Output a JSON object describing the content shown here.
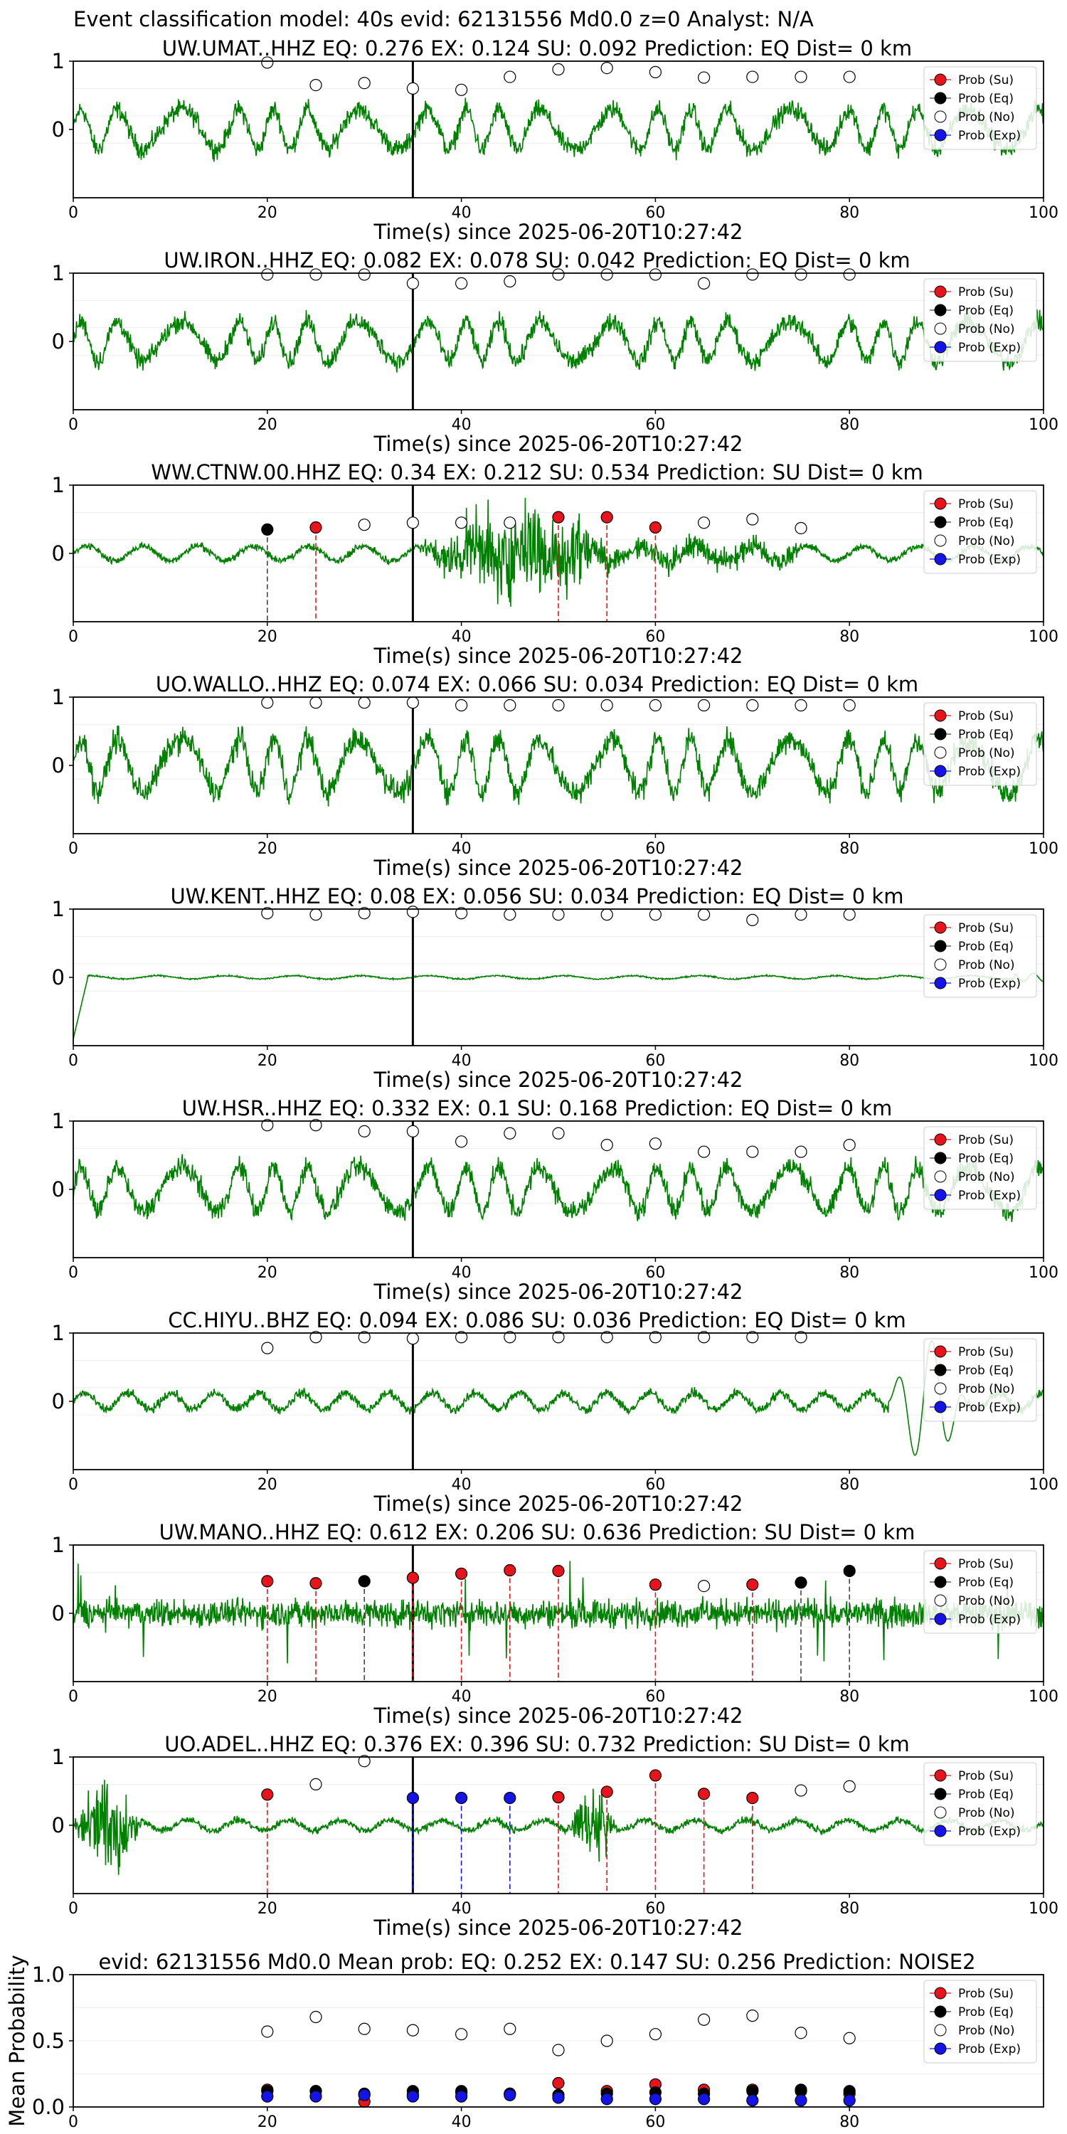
{
  "figure": {
    "title": "Event classification model: 40s evid: 62131556 Md0.0 z=0 Analyst: N/A",
    "colors": {
      "waveform": "#008000",
      "su": "#e8141c",
      "eq": "#000000",
      "no": "#ffffff",
      "exp": "#1414e6",
      "su_line": "#e8141c",
      "eq_line": "#444444",
      "exp_line": "#1414e6"
    }
  },
  "chart_data": [
    {
      "type": "line",
      "station": "UW.UMAT..HHZ",
      "title": "UW.UMAT..HHZ   EQ: 0.276  EX: 0.124  SU: 0.092   Prediction: EQ    Dist= 0 km",
      "xlabel": "Time(s) since 2025-06-20T10:27:42",
      "xlim": [
        0,
        100
      ],
      "ylim": [
        -1,
        1
      ],
      "xticks": [
        "0",
        "20",
        "40",
        "60",
        "80",
        "100"
      ],
      "yticks": [
        "1",
        "0"
      ],
      "pick_time": 35,
      "waveform": {
        "style": "noisy",
        "amplitude": 0.45
      },
      "legend": [
        "Prob (Su)",
        "Prob (Eq)",
        "Prob (No)",
        "Prob (Exp)"
      ],
      "points": [
        {
          "x": 20,
          "y": 0.98,
          "cls": "no"
        },
        {
          "x": 25,
          "y": 0.65,
          "cls": "no"
        },
        {
          "x": 30,
          "y": 0.68,
          "cls": "no"
        },
        {
          "x": 35,
          "y": 0.6,
          "cls": "no"
        },
        {
          "x": 40,
          "y": 0.58,
          "cls": "no"
        },
        {
          "x": 45,
          "y": 0.77,
          "cls": "no"
        },
        {
          "x": 50,
          "y": 0.88,
          "cls": "no"
        },
        {
          "x": 55,
          "y": 0.9,
          "cls": "no"
        },
        {
          "x": 60,
          "y": 0.84,
          "cls": "no"
        },
        {
          "x": 65,
          "y": 0.76,
          "cls": "no"
        },
        {
          "x": 70,
          "y": 0.77,
          "cls": "no"
        },
        {
          "x": 75,
          "y": 0.77,
          "cls": "no"
        },
        {
          "x": 80,
          "y": 0.77,
          "cls": "no"
        }
      ]
    },
    {
      "type": "line",
      "station": "UW.IRON..HHZ",
      "title": "UW.IRON..HHZ   EQ: 0.082  EX: 0.078  SU: 0.042   Prediction: EQ    Dist= 0 km",
      "xlabel": "Time(s) since 2025-06-20T10:27:42",
      "xlim": [
        0,
        100
      ],
      "ylim": [
        -1,
        1
      ],
      "xticks": [
        "0",
        "20",
        "40",
        "60",
        "80",
        "100"
      ],
      "yticks": [
        "1",
        "0"
      ],
      "pick_time": 35,
      "waveform": {
        "style": "noisy",
        "amplitude": 0.45
      },
      "legend": [
        "Prob (Su)",
        "Prob (Eq)",
        "Prob (No)",
        "Prob (Exp)"
      ],
      "points": [
        {
          "x": 20,
          "y": 0.98,
          "cls": "no"
        },
        {
          "x": 25,
          "y": 0.98,
          "cls": "no"
        },
        {
          "x": 30,
          "y": 0.98,
          "cls": "no"
        },
        {
          "x": 35,
          "y": 0.85,
          "cls": "no"
        },
        {
          "x": 40,
          "y": 0.85,
          "cls": "no"
        },
        {
          "x": 45,
          "y": 0.88,
          "cls": "no"
        },
        {
          "x": 50,
          "y": 0.98,
          "cls": "no"
        },
        {
          "x": 55,
          "y": 0.98,
          "cls": "no"
        },
        {
          "x": 60,
          "y": 0.98,
          "cls": "no"
        },
        {
          "x": 65,
          "y": 0.85,
          "cls": "no"
        },
        {
          "x": 70,
          "y": 0.98,
          "cls": "no"
        },
        {
          "x": 75,
          "y": 0.98,
          "cls": "no"
        },
        {
          "x": 80,
          "y": 0.98,
          "cls": "no"
        }
      ]
    },
    {
      "type": "line",
      "station": "WW.CTNW.00.HHZ",
      "title": "WW.CTNW.00.HHZ   EQ: 0.34  EX: 0.212  SU: 0.534   Prediction: SU    Dist= 0 km",
      "xlabel": "Time(s) since 2025-06-20T10:27:42",
      "xlim": [
        0,
        100
      ],
      "ylim": [
        -1,
        1
      ],
      "xticks": [
        "0",
        "20",
        "40",
        "60",
        "80",
        "100"
      ],
      "yticks": [
        "1",
        "0"
      ],
      "pick_time": 35,
      "waveform": {
        "style": "burst",
        "amplitude": 0.18,
        "burst_start": 35,
        "burst_end": 58,
        "burst_amp": 0.95
      },
      "legend": [
        "Prob (Su)",
        "Prob (Eq)",
        "Prob (No)",
        "Prob (Exp)"
      ],
      "points": [
        {
          "x": 20,
          "y": 0.35,
          "cls": "eq"
        },
        {
          "x": 25,
          "y": 0.38,
          "cls": "su"
        },
        {
          "x": 30,
          "y": 0.42,
          "cls": "no"
        },
        {
          "x": 35,
          "y": 0.45,
          "cls": "no"
        },
        {
          "x": 40,
          "y": 0.45,
          "cls": "no"
        },
        {
          "x": 45,
          "y": 0.45,
          "cls": "no"
        },
        {
          "x": 50,
          "y": 0.53,
          "cls": "su"
        },
        {
          "x": 55,
          "y": 0.53,
          "cls": "su"
        },
        {
          "x": 60,
          "y": 0.38,
          "cls": "su"
        },
        {
          "x": 65,
          "y": 0.45,
          "cls": "no"
        },
        {
          "x": 70,
          "y": 0.5,
          "cls": "no"
        },
        {
          "x": 75,
          "y": 0.37,
          "cls": "no"
        }
      ]
    },
    {
      "type": "line",
      "station": "UO.WALLO..HHZ",
      "title": "UO.WALLO..HHZ   EQ: 0.074  EX: 0.066  SU: 0.034   Prediction: EQ    Dist= 0 km",
      "xlabel": "Time(s) since 2025-06-20T10:27:42",
      "xlim": [
        0,
        100
      ],
      "ylim": [
        -1,
        1
      ],
      "xticks": [
        "0",
        "20",
        "40",
        "60",
        "80",
        "100"
      ],
      "yticks": [
        "1",
        "0"
      ],
      "pick_time": 35,
      "waveform": {
        "style": "noisy",
        "amplitude": 0.6
      },
      "legend": [
        "Prob (Su)",
        "Prob (Eq)",
        "Prob (No)",
        "Prob (Exp)"
      ],
      "points": [
        {
          "x": 20,
          "y": 0.92,
          "cls": "no"
        },
        {
          "x": 25,
          "y": 0.92,
          "cls": "no"
        },
        {
          "x": 30,
          "y": 0.92,
          "cls": "no"
        },
        {
          "x": 35,
          "y": 0.92,
          "cls": "no"
        },
        {
          "x": 40,
          "y": 0.88,
          "cls": "no"
        },
        {
          "x": 45,
          "y": 0.88,
          "cls": "no"
        },
        {
          "x": 50,
          "y": 0.88,
          "cls": "no"
        },
        {
          "x": 55,
          "y": 0.88,
          "cls": "no"
        },
        {
          "x": 60,
          "y": 0.88,
          "cls": "no"
        },
        {
          "x": 65,
          "y": 0.88,
          "cls": "no"
        },
        {
          "x": 70,
          "y": 0.88,
          "cls": "no"
        },
        {
          "x": 75,
          "y": 0.88,
          "cls": "no"
        },
        {
          "x": 80,
          "y": 0.88,
          "cls": "no"
        }
      ]
    },
    {
      "type": "line",
      "station": "UW.KENT..HHZ",
      "title": "UW.KENT..HHZ   EQ: 0.08  EX: 0.056  SU: 0.034   Prediction: EQ    Dist= 0 km",
      "xlabel": "Time(s) since 2025-06-20T10:27:42",
      "xlim": [
        0,
        100
      ],
      "ylim": [
        -1,
        1
      ],
      "xticks": [
        "0",
        "20",
        "40",
        "60",
        "80",
        "100"
      ],
      "yticks": [
        "1",
        "0"
      ],
      "pick_time": 35,
      "waveform": {
        "style": "quiet",
        "amplitude": 0.04
      },
      "legend": [
        "Prob (Su)",
        "Prob (Eq)",
        "Prob (No)",
        "Prob (Exp)"
      ],
      "points": [
        {
          "x": 20,
          "y": 0.94,
          "cls": "no"
        },
        {
          "x": 25,
          "y": 0.92,
          "cls": "no"
        },
        {
          "x": 30,
          "y": 0.94,
          "cls": "no"
        },
        {
          "x": 35,
          "y": 0.96,
          "cls": "no"
        },
        {
          "x": 40,
          "y": 0.94,
          "cls": "no"
        },
        {
          "x": 45,
          "y": 0.92,
          "cls": "no"
        },
        {
          "x": 50,
          "y": 0.92,
          "cls": "no"
        },
        {
          "x": 55,
          "y": 0.92,
          "cls": "no"
        },
        {
          "x": 60,
          "y": 0.92,
          "cls": "no"
        },
        {
          "x": 65,
          "y": 0.92,
          "cls": "no"
        },
        {
          "x": 70,
          "y": 0.84,
          "cls": "no"
        },
        {
          "x": 75,
          "y": 0.92,
          "cls": "no"
        },
        {
          "x": 80,
          "y": 0.92,
          "cls": "no"
        }
      ]
    },
    {
      "type": "line",
      "station": "UW.HSR..HHZ",
      "title": "UW.HSR..HHZ   EQ: 0.332  EX: 0.1  SU: 0.168   Prediction: EQ    Dist= 0 km",
      "xlabel": "Time(s) since 2025-06-20T10:27:42",
      "xlim": [
        0,
        100
      ],
      "ylim": [
        -1,
        1
      ],
      "xticks": [
        "0",
        "20",
        "40",
        "60",
        "80",
        "100"
      ],
      "yticks": [
        "1",
        "0"
      ],
      "pick_time": 35,
      "waveform": {
        "style": "noisy",
        "amplitude": 0.5
      },
      "legend": [
        "Prob (Su)",
        "Prob (Eq)",
        "Prob (No)",
        "Prob (Exp)"
      ],
      "points": [
        {
          "x": 20,
          "y": 0.94,
          "cls": "no"
        },
        {
          "x": 25,
          "y": 0.94,
          "cls": "no"
        },
        {
          "x": 30,
          "y": 0.85,
          "cls": "no"
        },
        {
          "x": 35,
          "y": 0.85,
          "cls": "no"
        },
        {
          "x": 40,
          "y": 0.7,
          "cls": "no"
        },
        {
          "x": 45,
          "y": 0.82,
          "cls": "no"
        },
        {
          "x": 50,
          "y": 0.82,
          "cls": "no"
        },
        {
          "x": 55,
          "y": 0.65,
          "cls": "no"
        },
        {
          "x": 60,
          "y": 0.67,
          "cls": "no"
        },
        {
          "x": 65,
          "y": 0.55,
          "cls": "no"
        },
        {
          "x": 70,
          "y": 0.55,
          "cls": "no"
        },
        {
          "x": 75,
          "y": 0.55,
          "cls": "no"
        },
        {
          "x": 80,
          "y": 0.65,
          "cls": "no"
        }
      ]
    },
    {
      "type": "line",
      "station": "CC.HIYU..BHZ",
      "title": "CC.HIYU..BHZ   EQ: 0.094  EX: 0.086  SU: 0.036   Prediction: EQ    Dist= 0 km",
      "xlabel": "Time(s) since 2025-06-20T10:27:42",
      "xlim": [
        0,
        100
      ],
      "ylim": [
        -1,
        1
      ],
      "xticks": [
        "0",
        "20",
        "40",
        "60",
        "80",
        "100"
      ],
      "yticks": [
        "1",
        "0"
      ],
      "pick_time": 35,
      "waveform": {
        "style": "tail",
        "amplitude": 0.22,
        "tail_start": 84,
        "tail_amp": 0.9
      },
      "legend": [
        "Prob (Su)",
        "Prob (Eq)",
        "Prob (No)",
        "Prob (Exp)"
      ],
      "points": [
        {
          "x": 20,
          "y": 0.78,
          "cls": "no"
        },
        {
          "x": 25,
          "y": 0.94,
          "cls": "no"
        },
        {
          "x": 30,
          "y": 0.94,
          "cls": "no"
        },
        {
          "x": 35,
          "y": 0.92,
          "cls": "no"
        },
        {
          "x": 40,
          "y": 0.94,
          "cls": "no"
        },
        {
          "x": 45,
          "y": 0.94,
          "cls": "no"
        },
        {
          "x": 50,
          "y": 0.94,
          "cls": "no"
        },
        {
          "x": 55,
          "y": 0.94,
          "cls": "no"
        },
        {
          "x": 60,
          "y": 0.94,
          "cls": "no"
        },
        {
          "x": 65,
          "y": 0.94,
          "cls": "no"
        },
        {
          "x": 70,
          "y": 0.94,
          "cls": "no"
        },
        {
          "x": 75,
          "y": 0.94,
          "cls": "no"
        }
      ]
    },
    {
      "type": "line",
      "station": "UW.MANO..HHZ",
      "title": "UW.MANO..HHZ   EQ: 0.612  EX: 0.206  SU: 0.636   Prediction: SU    Dist= 0 km",
      "xlabel": "Time(s) since 2025-06-20T10:27:42",
      "xlim": [
        0,
        100
      ],
      "ylim": [
        -1,
        1
      ],
      "xticks": [
        "0",
        "20",
        "40",
        "60",
        "80",
        "100"
      ],
      "yticks": [
        "1",
        "0"
      ],
      "pick_time": 35,
      "waveform": {
        "style": "spiky",
        "amplitude": 0.3
      },
      "legend": [
        "Prob (Su)",
        "Prob (Eq)",
        "Prob (No)",
        "Prob (Exp)"
      ],
      "points": [
        {
          "x": 20,
          "y": 0.47,
          "cls": "su"
        },
        {
          "x": 25,
          "y": 0.44,
          "cls": "su"
        },
        {
          "x": 30,
          "y": 0.47,
          "cls": "eq"
        },
        {
          "x": 35,
          "y": 0.52,
          "cls": "su"
        },
        {
          "x": 40,
          "y": 0.58,
          "cls": "su"
        },
        {
          "x": 45,
          "y": 0.63,
          "cls": "su"
        },
        {
          "x": 50,
          "y": 0.62,
          "cls": "su"
        },
        {
          "x": 60,
          "y": 0.42,
          "cls": "su"
        },
        {
          "x": 65,
          "y": 0.4,
          "cls": "no"
        },
        {
          "x": 70,
          "y": 0.42,
          "cls": "su"
        },
        {
          "x": 75,
          "y": 0.45,
          "cls": "eq"
        },
        {
          "x": 80,
          "y": 0.62,
          "cls": "eq"
        }
      ]
    },
    {
      "type": "line",
      "station": "UO.ADEL..HHZ",
      "title": "UO.ADEL..HHZ   EQ: 0.376  EX: 0.396  SU: 0.732   Prediction: SU    Dist= 0 km",
      "xlabel": "Time(s) since 2025-06-20T10:27:42",
      "xlim": [
        0,
        100
      ],
      "ylim": [
        -1,
        1
      ],
      "xticks": [
        "0",
        "20",
        "40",
        "60",
        "80",
        "100"
      ],
      "yticks": [
        "1",
        "0"
      ],
      "pick_time": 35,
      "waveform": {
        "style": "adel",
        "amplitude": 0.15
      },
      "legend": [
        "Prob (Su)",
        "Prob (Eq)",
        "Prob (No)",
        "Prob (Exp)"
      ],
      "points": [
        {
          "x": 20,
          "y": 0.45,
          "cls": "su"
        },
        {
          "x": 25,
          "y": 0.6,
          "cls": "no"
        },
        {
          "x": 30,
          "y": 0.94,
          "cls": "no"
        },
        {
          "x": 35,
          "y": 0.4,
          "cls": "exp"
        },
        {
          "x": 40,
          "y": 0.4,
          "cls": "exp"
        },
        {
          "x": 45,
          "y": 0.4,
          "cls": "exp"
        },
        {
          "x": 50,
          "y": 0.41,
          "cls": "su"
        },
        {
          "x": 55,
          "y": 0.49,
          "cls": "su"
        },
        {
          "x": 60,
          "y": 0.73,
          "cls": "su"
        },
        {
          "x": 65,
          "y": 0.46,
          "cls": "su"
        },
        {
          "x": 70,
          "y": 0.4,
          "cls": "su"
        },
        {
          "x": 75,
          "y": 0.51,
          "cls": "no"
        },
        {
          "x": 80,
          "y": 0.57,
          "cls": "no"
        }
      ]
    },
    {
      "type": "scatter",
      "title": "evid: 62131556  Md0.0   Mean prob:   EQ: 0.252  EX: 0.147  SU: 0.256   Prediction: NOISE2",
      "ylabel": "Mean Probability",
      "xlim": [
        0,
        100
      ],
      "ylim": [
        0,
        1
      ],
      "xticks": [
        "0",
        "20",
        "40",
        "60",
        "80"
      ],
      "yticks": [
        "0.0",
        "0.5",
        "1.0"
      ],
      "legend": [
        "Prob (Su)",
        "Prob (Eq)",
        "Prob (No)",
        "Prob (Exp)"
      ],
      "series": [
        {
          "name": "Prob (No)",
          "cls": "no",
          "x": [
            20,
            25,
            30,
            35,
            40,
            45,
            50,
            55,
            60,
            65,
            70,
            75,
            80
          ],
          "y": [
            0.57,
            0.68,
            0.59,
            0.58,
            0.55,
            0.59,
            0.43,
            0.5,
            0.55,
            0.66,
            0.69,
            0.56,
            0.52
          ]
        },
        {
          "name": "Prob (Su)",
          "cls": "su",
          "x": [
            20,
            25,
            30,
            35,
            40,
            45,
            50,
            55,
            60,
            65,
            70,
            75,
            80
          ],
          "y": [
            0.13,
            0.12,
            0.04,
            0.09,
            0.11,
            0.1,
            0.18,
            0.12,
            0.17,
            0.13,
            0.13,
            0.12,
            0.1
          ]
        },
        {
          "name": "Prob (Eq)",
          "cls": "eq",
          "x": [
            20,
            25,
            30,
            35,
            40,
            45,
            50,
            55,
            60,
            65,
            70,
            75,
            80
          ],
          "y": [
            0.12,
            0.12,
            0.1,
            0.12,
            0.12,
            0.1,
            0.09,
            0.1,
            0.11,
            0.1,
            0.12,
            0.13,
            0.12
          ]
        },
        {
          "name": "Prob (Exp)",
          "cls": "exp",
          "x": [
            20,
            25,
            30,
            35,
            40,
            45,
            50,
            55,
            60,
            65,
            70,
            75,
            80
          ],
          "y": [
            0.08,
            0.08,
            0.09,
            0.08,
            0.08,
            0.09,
            0.07,
            0.06,
            0.06,
            0.06,
            0.05,
            0.05,
            0.05
          ]
        }
      ]
    }
  ]
}
